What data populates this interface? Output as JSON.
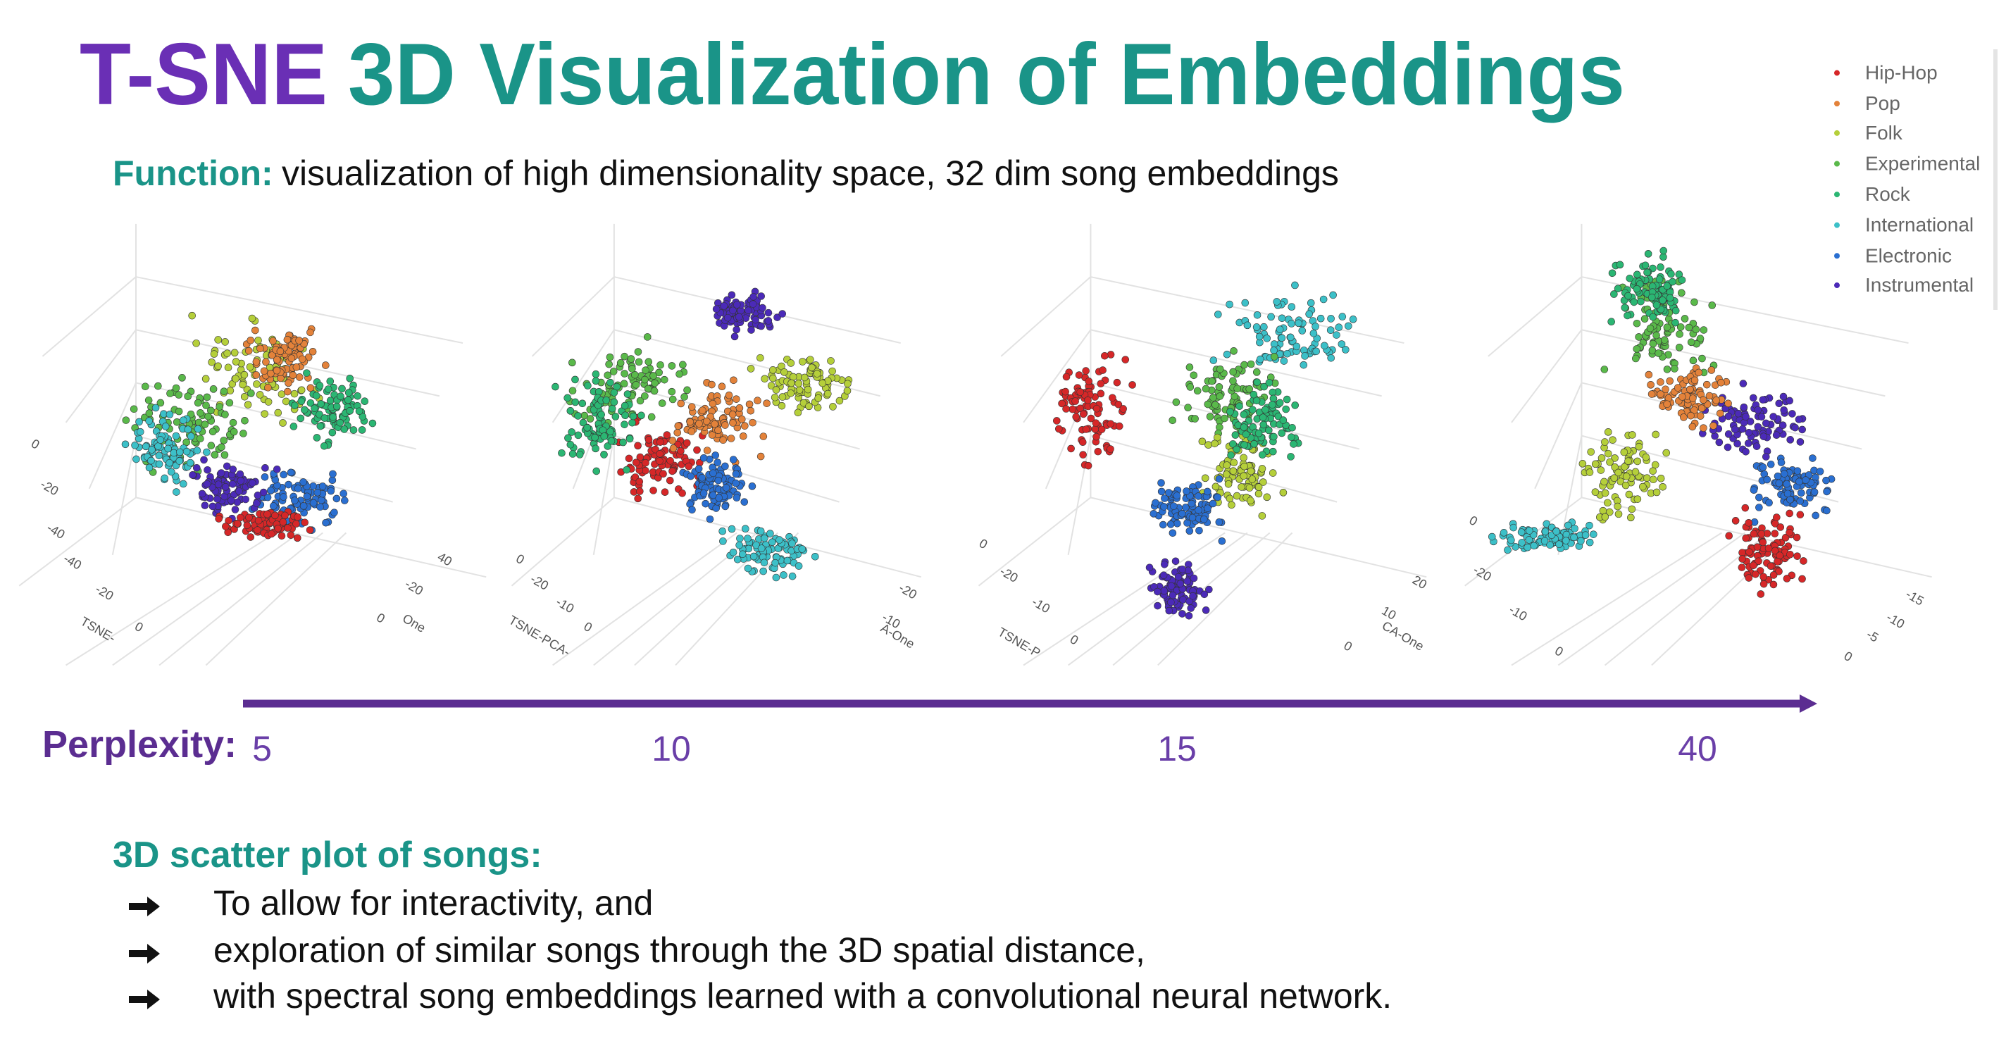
{
  "title": {
    "prefix": "T-SNE",
    "main": "3D Visualization of Embeddings"
  },
  "function": {
    "label": "Function:",
    "text": "visualization of high dimensionality space, 32 dim song embeddings"
  },
  "legend": [
    {
      "label": "Hip-Hop",
      "color": "#d62728"
    },
    {
      "label": "Pop",
      "color": "#e3823a"
    },
    {
      "label": "Folk",
      "color": "#b5cf3a"
    },
    {
      "label": "Experimental",
      "color": "#5ab94a"
    },
    {
      "label": "Rock",
      "color": "#2bb673"
    },
    {
      "label": "International",
      "color": "#3cc0c8"
    },
    {
      "label": "Electronic",
      "color": "#2a6fd1"
    },
    {
      "label": "Instrumental",
      "color": "#4b2ab8"
    }
  ],
  "plots": [
    {
      "axis_labels": [
        "0",
        "-20",
        "-40",
        "-40",
        "-20",
        "0",
        "TSNE-",
        "40",
        "-20",
        "0",
        "One"
      ]
    },
    {
      "axis_labels": [
        "0",
        "-20",
        "-10",
        "0",
        "TSNE-PCA-",
        "-20",
        "-10",
        "A-One"
      ]
    },
    {
      "axis_labels": [
        "0",
        "-20",
        "-10",
        "0",
        "TSNE-P",
        "20",
        "10",
        "0",
        "CA-One"
      ]
    },
    {
      "axis_labels": [
        "0",
        "-20",
        "-10",
        "0",
        "-15",
        "-10",
        "-5",
        "0"
      ]
    }
  ],
  "perplexity": {
    "label": "Perplexity:",
    "values": [
      5,
      10,
      15,
      40
    ]
  },
  "notes": {
    "heading": "3D scatter plot of songs:",
    "bullets": [
      "To allow for interactivity, and",
      "exploration of similar songs through the 3D spatial distance,",
      "with spectral song embeddings learned with a convolutional neural network."
    ]
  }
}
